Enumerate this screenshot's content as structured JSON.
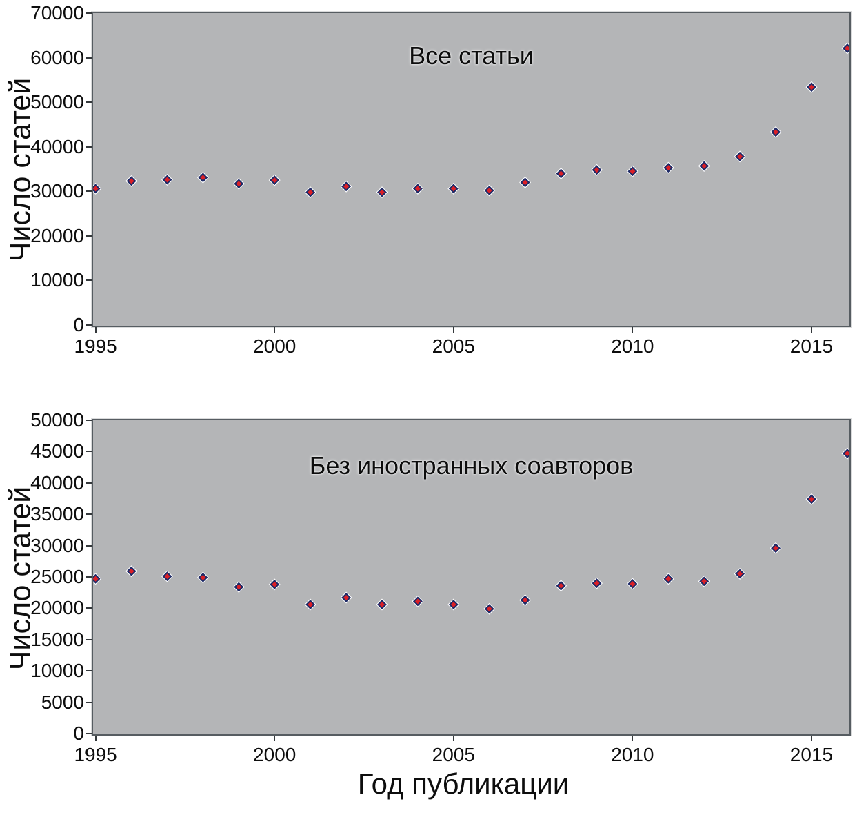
{
  "figure": {
    "language": "ru",
    "text_color": "#0d0d0d",
    "axis_color": "#565c61",
    "background": "#ffffff"
  },
  "chart_data": [
    {
      "type": "scatter",
      "title": "Все статьи",
      "ylabel": "Число статей",
      "xlabel": "",
      "x": [
        1995,
        1996,
        1997,
        1998,
        1999,
        2000,
        2001,
        2002,
        2003,
        2004,
        2005,
        2006,
        2007,
        2008,
        2009,
        2010,
        2011,
        2012,
        2013,
        2014,
        2015,
        2016
      ],
      "values": [
        30600,
        32300,
        32600,
        33100,
        31700,
        32500,
        29800,
        31100,
        29800,
        30600,
        30600,
        30200,
        32000,
        34000,
        34800,
        34500,
        35300,
        35700,
        37800,
        43300,
        53400,
        62100
      ],
      "ylim": [
        0,
        70000
      ],
      "ytick_step": 10000,
      "xticks": [
        1995,
        2000,
        2005,
        2010,
        2015
      ],
      "xlim": [
        1994.93,
        2016.06
      ],
      "grid": false,
      "legend": "none",
      "plot_bg": "#b4b5b7",
      "marker": {
        "shape": "diamond",
        "fill": "#dc1f26",
        "ring": "#1e2a66",
        "halo": "#ffffff"
      }
    },
    {
      "type": "scatter",
      "title": "Без иностранных соавторов",
      "ylabel": "Число статей",
      "xlabel": "Год публикации",
      "x": [
        1995,
        1996,
        1997,
        1998,
        1999,
        2000,
        2001,
        2002,
        2003,
        2004,
        2005,
        2006,
        2007,
        2008,
        2009,
        2010,
        2011,
        2012,
        2013,
        2014,
        2015,
        2016
      ],
      "values": [
        24700,
        25900,
        25100,
        24900,
        23400,
        23800,
        20600,
        21700,
        20600,
        21100,
        20600,
        19900,
        21300,
        23600,
        24000,
        23900,
        24700,
        24300,
        25500,
        29600,
        37400,
        44700
      ],
      "ylim": [
        0,
        50000
      ],
      "ytick_step": 5000,
      "xticks": [
        1995,
        2000,
        2005,
        2010,
        2015
      ],
      "xlim": [
        1994.93,
        2016.06
      ],
      "grid": false,
      "legend": "none",
      "plot_bg": "#b4b5b7",
      "marker": {
        "shape": "diamond",
        "fill": "#dc1f26",
        "ring": "#1e2a66",
        "halo": "#ffffff"
      }
    }
  ]
}
